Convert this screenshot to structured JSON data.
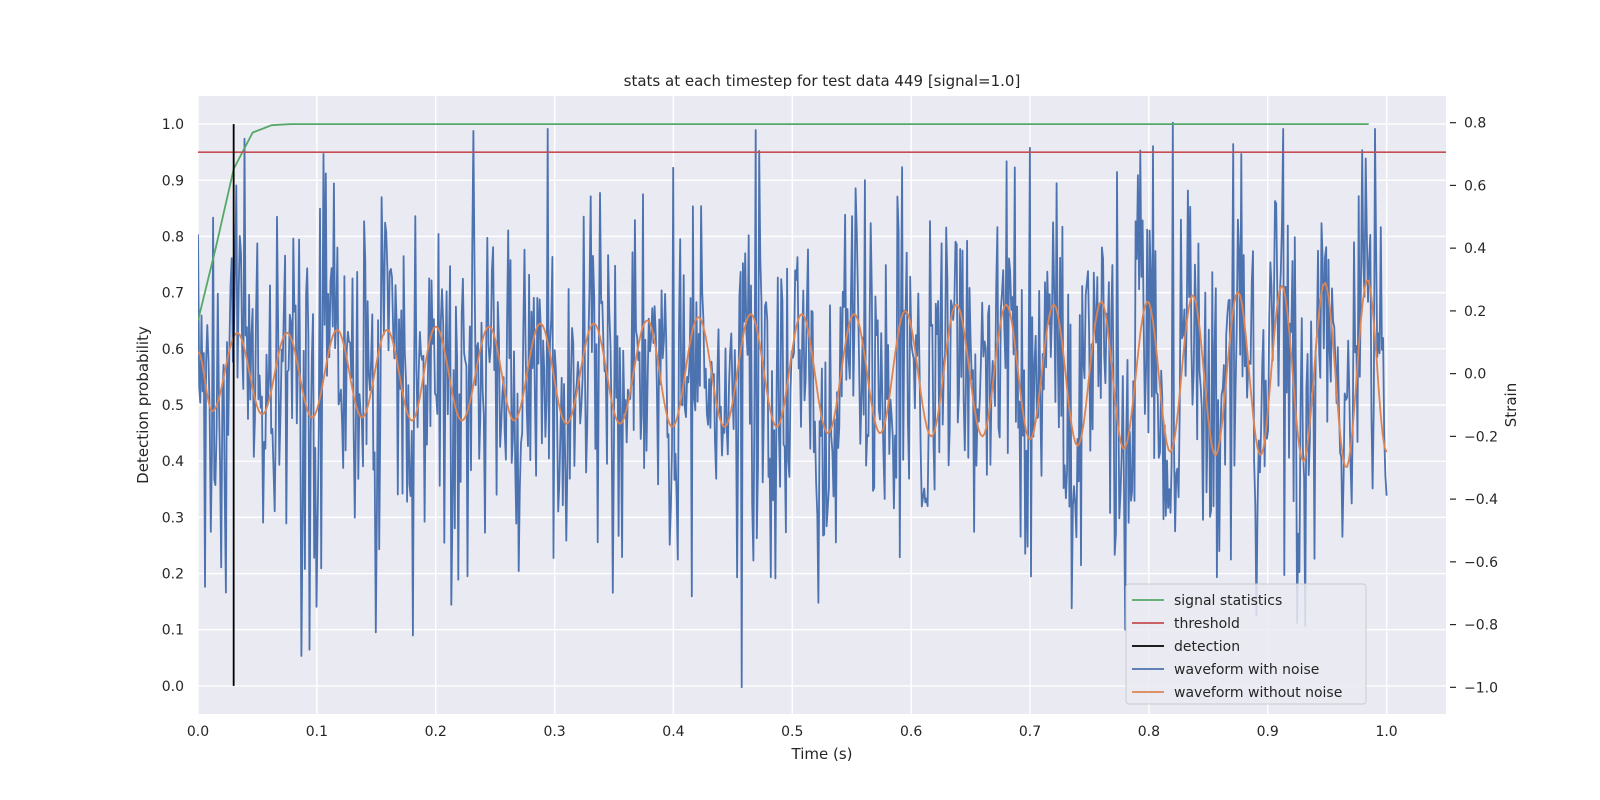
{
  "chart_data": {
    "type": "line",
    "title": "stats at each timestep for test data 449 [signal=1.0]",
    "xlabel": "Time (s)",
    "ylabel_left": "Detection probability",
    "ylabel_right": "Strain",
    "xlim": [
      0.0,
      1.05
    ],
    "ylim_left": [
      -0.05,
      1.05
    ],
    "ylim_right": [
      -1.085,
      0.885
    ],
    "x_ticks": [
      "0.0",
      "0.1",
      "0.2",
      "0.3",
      "0.4",
      "0.5",
      "0.6",
      "0.7",
      "0.8",
      "0.9",
      "1.0"
    ],
    "y_left_ticks": [
      "0.0",
      "0.1",
      "0.2",
      "0.3",
      "0.4",
      "0.5",
      "0.6",
      "0.7",
      "0.8",
      "0.9",
      "1.0"
    ],
    "y_right_ticks": [
      "−1.0",
      "−0.8",
      "−0.6",
      "−0.4",
      "−0.2",
      "0.0",
      "0.2",
      "0.4",
      "0.6",
      "0.8"
    ],
    "grid": true,
    "legend_position": "lower-right",
    "colors": {
      "signal statistics": "#55a868",
      "threshold": "#c44e52",
      "detection": "#000000",
      "waveform with noise": "#4c72b0",
      "waveform without noise": "#dd8452",
      "plot_background": "#eaeaf2",
      "grid": "#ffffff"
    },
    "series": [
      {
        "name": "signal statistics",
        "axis": "left",
        "x": [
          0.0,
          0.015,
          0.03,
          0.046,
          0.062,
          0.078,
          0.1,
          0.2,
          0.5,
          0.985
        ],
        "y": [
          0.65,
          0.78,
          0.92,
          0.985,
          0.998,
          1.0,
          1.0,
          1.0,
          1.0,
          1.0
        ]
      },
      {
        "name": "threshold",
        "axis": "left",
        "x": [
          0.0,
          1.05
        ],
        "y": [
          0.95,
          0.95
        ]
      },
      {
        "name": "detection",
        "axis": "left",
        "x": [
          0.03,
          0.03
        ],
        "y": [
          0.0,
          1.0
        ]
      },
      {
        "name": "waveform with noise",
        "axis": "right",
        "x_range": [
          0.0,
          1.0
        ],
        "samples": 1024,
        "seed": 449,
        "noise_sigma": 0.28,
        "highlights": [
          [
            0.006,
            -0.68
          ],
          [
            0.087,
            -0.9
          ],
          [
            0.094,
            -0.88
          ],
          [
            0.415,
            -0.71
          ],
          [
            0.457,
            -1.0
          ],
          [
            0.472,
            0.71
          ],
          [
            0.82,
            0.8
          ],
          [
            0.7,
            0.72
          ],
          [
            0.878,
            0.7
          ],
          [
            0.032,
            0.6
          ],
          [
            0.066,
            0.5
          ]
        ]
      },
      {
        "name": "waveform without noise",
        "axis": "right",
        "x": [
          0.0,
          0.012,
          0.033,
          0.054,
          0.075,
          0.096,
          0.117,
          0.138,
          0.159,
          0.18,
          0.2,
          0.222,
          0.245,
          0.266,
          0.288,
          0.31,
          0.333,
          0.355,
          0.378,
          0.399,
          0.421,
          0.443,
          0.465,
          0.487,
          0.508,
          0.53,
          0.552,
          0.574,
          0.595,
          0.617,
          0.638,
          0.66,
          0.68,
          0.7,
          0.72,
          0.74,
          0.76,
          0.779,
          0.799,
          0.818,
          0.837,
          0.856,
          0.875,
          0.894,
          0.912,
          0.93,
          0.948,
          0.966,
          0.984,
          1.0
        ],
        "y": [
          0.07,
          -0.12,
          0.13,
          -0.13,
          0.13,
          -0.14,
          0.14,
          -0.14,
          0.14,
          -0.15,
          0.15,
          -0.15,
          0.15,
          -0.15,
          0.16,
          -0.16,
          0.16,
          -0.16,
          0.17,
          -0.17,
          0.18,
          -0.17,
          0.19,
          -0.17,
          0.19,
          -0.19,
          0.19,
          -0.19,
          0.2,
          -0.2,
          0.22,
          -0.2,
          0.22,
          -0.21,
          0.22,
          -0.23,
          0.23,
          -0.24,
          0.23,
          -0.25,
          0.25,
          -0.26,
          0.26,
          -0.26,
          0.28,
          -0.28,
          0.29,
          -0.3,
          0.3,
          -0.25
        ]
      }
    ]
  }
}
